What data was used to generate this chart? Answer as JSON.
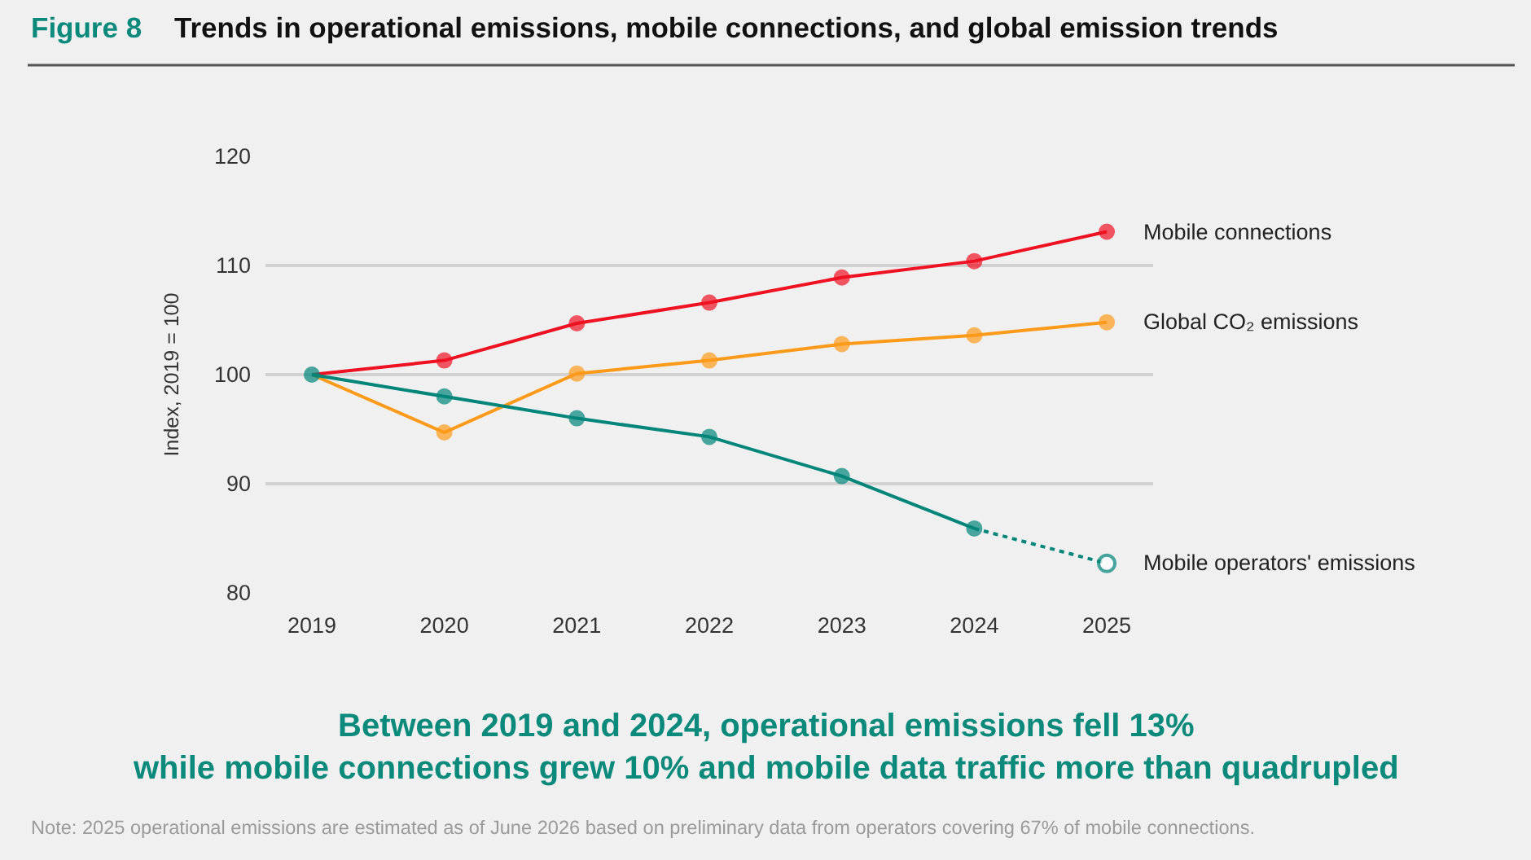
{
  "chart_data": {
    "type": "line",
    "title": "Figure 8",
    "subtitle": "Trends in operational emissions, mobile connections, and global emission trends",
    "ylabel": "Index, 2019 = 100",
    "x": [
      2019,
      2020,
      2021,
      2022,
      2023,
      2024,
      2025
    ],
    "xlim": [
      2018.65,
      2025.35
    ],
    "xticks": [
      2019,
      2020,
      2021,
      2022,
      2023,
      2024,
      2025
    ],
    "ylim": [
      80,
      120
    ],
    "yticks": [
      80,
      90,
      100,
      110,
      120
    ],
    "grid": "y",
    "marker": "circle",
    "line_style": "solid",
    "series": [
      {
        "name": "Mobile connections",
        "color": "#ee1122",
        "values": [
          100,
          101.3,
          104.7,
          106.6,
          108.9,
          110.4,
          113.1
        ]
      },
      {
        "name": "Global CO₂ emissions",
        "color": "#fd9a1a",
        "values": [
          100,
          94.7,
          100.1,
          101.3,
          102.8,
          103.6,
          104.8
        ]
      },
      {
        "name": "Mobile operators' emissions",
        "color": "#00857a",
        "line_style": "dotted",
        "values": [
          null,
          null,
          null,
          null,
          null,
          85.9,
          82.7
        ]
      },
      {
        "color": "#00857a",
        "values": [
          100,
          98.0,
          96.0,
          94.3,
          90.7,
          85.9,
          null
        ]
      }
    ],
    "annotations": [
      "Between 2019 and 2024, operational emissions fell 13%\nwhile mobile connections grew 10% and mobile data traffic more than quadrupled",
      "Note: 2025 operational emissions are estimated as of June 2026 based on preliminary data from operators covering 67% of mobile connections."
    ]
  }
}
